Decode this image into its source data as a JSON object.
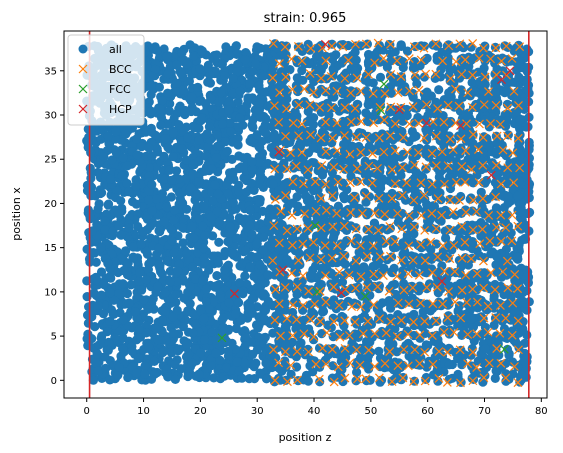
{
  "chart_data": {
    "type": "scatter",
    "title": "strain: 0.965",
    "xlabel": "position z",
    "ylabel": "position x",
    "xlim": [
      -4,
      81
    ],
    "ylim": [
      -2,
      39.5
    ],
    "xticks": [
      0,
      10,
      20,
      30,
      40,
      50,
      60,
      70,
      80
    ],
    "yticks": [
      0,
      5,
      10,
      15,
      20,
      25,
      30,
      35
    ],
    "grid": false,
    "legend_position": "top-left",
    "vertical_lines": [
      {
        "x": 0.5,
        "color": "#d62728"
      },
      {
        "x": 77.8,
        "color": "#d62728"
      }
    ],
    "series": [
      {
        "name": "all",
        "marker": "circle",
        "color": "#1f77b4",
        "description": "dense cloud of atoms spanning z 0–78, x 0–38",
        "z_range": [
          0,
          78
        ],
        "x_range": [
          0,
          38
        ]
      },
      {
        "name": "BCC",
        "marker": "x",
        "color": "#ff7f0e",
        "lattice": {
          "z_range": [
            33,
            77
          ],
          "x_range": [
            0,
            38
          ],
          "z_step": 2.05,
          "x_step": 1.72
        }
      },
      {
        "name": "FCC",
        "marker": "x",
        "color": "#2ca02c",
        "x_values": [
          23.8,
          40.2,
          40.5,
          51.8,
          52.3,
          73.5,
          49.0
        ],
        "y_values": [
          4.8,
          17.5,
          10.0,
          30.5,
          33.5,
          3.5,
          9.5
        ]
      },
      {
        "name": "HCP",
        "marker": "x",
        "color": "#d62728",
        "x_values": [
          26.0,
          33.8,
          42.0,
          44.8,
          55.0,
          59.8,
          62.5,
          65.8,
          71.2,
          73.0,
          74.5,
          34.5
        ],
        "y_values": [
          9.8,
          25.8,
          38.0,
          9.9,
          30.6,
          29.1,
          11.2,
          28.8,
          23.2,
          34.0,
          35.0,
          12.5
        ]
      }
    ]
  }
}
